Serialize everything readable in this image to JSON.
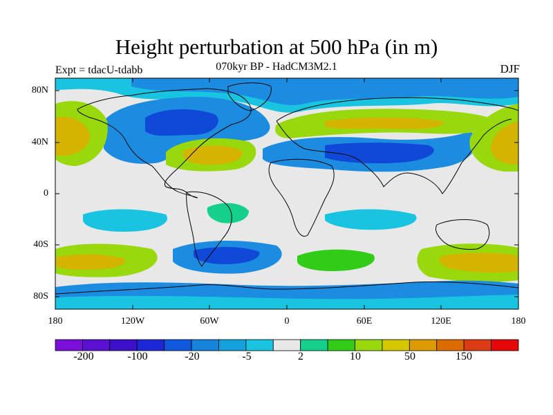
{
  "title": "Height perturbation at 500 hPa (in m)",
  "subtitle": "070kyr BP - HadCM3M2.1",
  "experiment": "Expt = tdacU-tdabb",
  "season": "DJF",
  "axes": {
    "x_ticks": [
      "180",
      "120W",
      "60W",
      "0",
      "60E",
      "120E",
      "180"
    ],
    "y_ticks": [
      "80N",
      "40N",
      "0",
      "40S",
      "80S"
    ]
  },
  "colorbar": {
    "colors": [
      "#7a10d8",
      "#5a10d0",
      "#3c10c8",
      "#1c28d8",
      "#1058dc",
      "#1484dc",
      "#14a0dc",
      "#18c4e0",
      "#e8e8e8",
      "#14d08c",
      "#30cc18",
      "#98d80c",
      "#d4c800",
      "#dc9c00",
      "#dc6c00",
      "#dc3c14",
      "#e40808"
    ],
    "labels": [
      "-200",
      "-100",
      "-20",
      "-5",
      "2",
      "10",
      "50",
      "150"
    ]
  },
  "map_colors": {
    "neutral": "#e8e8e8",
    "strong_neg": "#1048d8",
    "mid_neg": "#1c8ce0",
    "weak_neg": "#18c4e0",
    "weak_pos": "#14d08c",
    "mid_pos": "#30cc18",
    "strong_pos": "#98d80c",
    "max_pos": "#d4b400",
    "coast": "#000000"
  }
}
